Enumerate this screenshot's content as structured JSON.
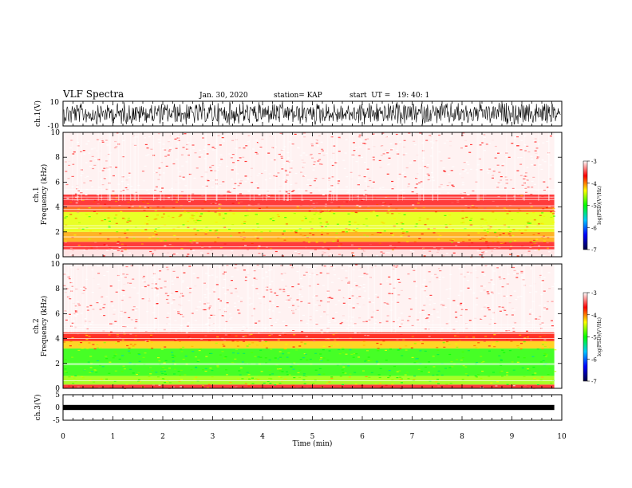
{
  "header": {
    "title": "VLF Spectra",
    "date": "Jan. 30, 2020",
    "station": "station= KAP",
    "start": "start  UT =   19: 40: 1"
  },
  "colors": {
    "bar_stops": [
      "#ff0000",
      "#ffff00",
      "#00ff00",
      "#00c8ff",
      "#0000ff",
      "#000040"
    ],
    "bar_top": "#ffffff",
    "waveform": "#000000"
  },
  "chart_data": [
    {
      "type": "line",
      "ylabel": "ch.1(V)",
      "ylim": [
        -10,
        10
      ],
      "yticks": [
        "10",
        "-10"
      ],
      "xlim": [
        0,
        10
      ],
      "description_values": {
        "amplitude_range": [
          -10,
          10
        ]
      }
    },
    {
      "type": "heatmap",
      "ylabel": "ch.1\nFrequency  (kHz)",
      "ylim": [
        0,
        10
      ],
      "yticks": [
        "0",
        "2",
        "4",
        "6",
        "8",
        "10"
      ],
      "xlim": [
        0,
        9.85
      ],
      "colorbar": {
        "label": "log(PSD)(V²/Hz)",
        "range": [
          -7,
          -3
        ],
        "ticks": [
          "-3",
          "-4",
          "-5",
          "-6",
          "-7"
        ]
      },
      "bands": [
        {
          "f0": 0.0,
          "f1": 0.6,
          "level": -3.2
        },
        {
          "f0": 0.6,
          "f1": 1.2,
          "level": -3.6
        },
        {
          "f0": 1.2,
          "f1": 2.0,
          "level": -4.1
        },
        {
          "f0": 2.0,
          "f1": 3.6,
          "level": -4.4
        },
        {
          "f0": 3.6,
          "f1": 4.0,
          "level": -3.9
        },
        {
          "f0": 4.0,
          "f1": 5.0,
          "level": -3.6
        },
        {
          "f0": 5.0,
          "f1": 10.0,
          "level": -3.1
        }
      ],
      "lines_khz": [
        0.8,
        1.6,
        2.3,
        2.5,
        3.8,
        4.1,
        4.6,
        4.8,
        5.4
      ]
    },
    {
      "type": "heatmap",
      "ylabel": "ch.2\nFrequency  (kHz)",
      "ylim": [
        0,
        10
      ],
      "yticks": [
        "0",
        "2",
        "4",
        "6",
        "8",
        "10"
      ],
      "xlim": [
        0,
        9.85
      ],
      "colorbar": {
        "label": "log(PSD)(V²/Hz)",
        "range": [
          -7,
          -3
        ],
        "ticks": [
          "-3",
          "-4",
          "-5",
          "-6",
          "-7"
        ]
      },
      "bands": [
        {
          "f0": 0.0,
          "f1": 0.3,
          "level": -3.6
        },
        {
          "f0": 0.3,
          "f1": 1.0,
          "level": -4.6
        },
        {
          "f0": 1.0,
          "f1": 3.2,
          "level": -4.9
        },
        {
          "f0": 3.2,
          "f1": 3.8,
          "level": -4.2
        },
        {
          "f0": 3.8,
          "f1": 4.5,
          "level": -3.7
        },
        {
          "f0": 4.5,
          "f1": 10.0,
          "level": -3.1
        }
      ],
      "lines_khz": [
        0.6,
        1.9,
        2.0,
        4.0,
        4.4,
        4.7,
        4.9,
        5.1
      ]
    },
    {
      "type": "line",
      "ylabel": "ch.3(V)",
      "ylim": [
        -5,
        5
      ],
      "yticks": [
        "5",
        "0",
        "-5"
      ],
      "xlim": [
        0,
        10
      ],
      "xlabel": "Time  (min)",
      "xticks": [
        "0",
        "1",
        "2",
        "3",
        "4",
        "5",
        "6",
        "7",
        "8",
        "9",
        "10"
      ],
      "signal_range": [
        -1,
        1
      ]
    }
  ]
}
